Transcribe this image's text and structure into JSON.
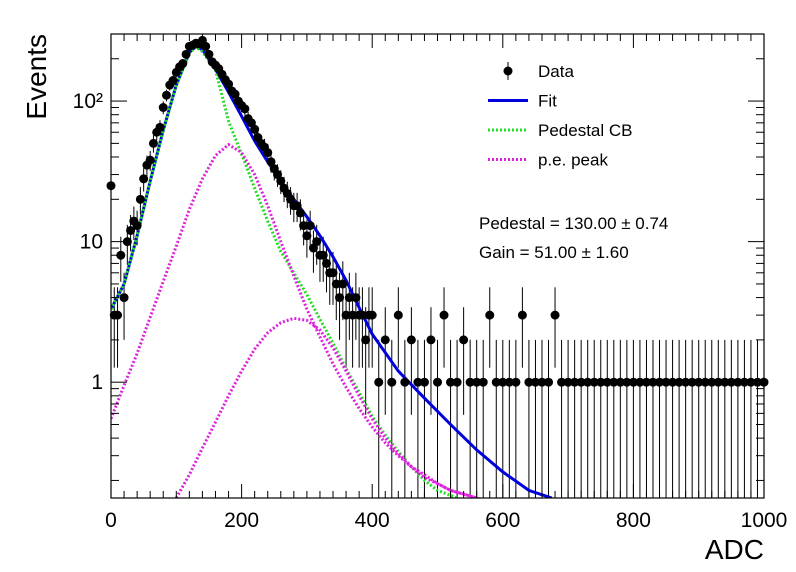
{
  "chart_data": {
    "type": "scatter",
    "title": "",
    "xlabel": "ADC",
    "ylabel": "Events",
    "xlim": [
      0,
      1000
    ],
    "ylim": [
      0.15,
      300
    ],
    "yscale": "log",
    "grid": false,
    "legend_position": "top-right",
    "x_ticks": [
      "0",
      "200",
      "400",
      "600",
      "800",
      "1000"
    ],
    "y_ticks": [
      "1",
      "10",
      "10²"
    ],
    "legend": [
      {
        "label": "Data",
        "style": "marker",
        "color": "#000000"
      },
      {
        "label": "Fit",
        "style": "solid",
        "color": "#0000dd"
      },
      {
        "label": "Pedestal CB",
        "style": "dotted",
        "color": "#22dd22"
      },
      {
        "label": "p.e. peak",
        "style": "dotted",
        "color": "#dd22dd"
      }
    ],
    "annotations": {
      "pedestal": "Pedestal = 130.00 ± 0.74",
      "gain": "Gain = 51.00 ± 1.60"
    },
    "fit_parameters": {
      "pedestal": 130.0,
      "pedestal_error": 0.74,
      "gain": 51.0,
      "gain_error": 1.6
    },
    "series": [
      {
        "name": "Data",
        "x": [
          0,
          5,
          10,
          15,
          20,
          25,
          30,
          35,
          40,
          45,
          50,
          55,
          60,
          65,
          70,
          75,
          80,
          85,
          90,
          95,
          100,
          105,
          110,
          115,
          120,
          125,
          130,
          135,
          140,
          145,
          150,
          155,
          160,
          165,
          170,
          175,
          180,
          185,
          190,
          195,
          200,
          205,
          210,
          215,
          220,
          225,
          230,
          235,
          240,
          245,
          250,
          255,
          260,
          265,
          270,
          275,
          280,
          285,
          290,
          295,
          300,
          305,
          310,
          315,
          320,
          325,
          330,
          335,
          340,
          345,
          350,
          355,
          360,
          365,
          370,
          375,
          380,
          385,
          390,
          395,
          400,
          410,
          420,
          430,
          440,
          450,
          460,
          470,
          480,
          490,
          500,
          510,
          520,
          530,
          540,
          550,
          560,
          570,
          580,
          590,
          600,
          610,
          620,
          630,
          640,
          650,
          660,
          670,
          680,
          690,
          700,
          710,
          720,
          730,
          740,
          750,
          760,
          770,
          780,
          790,
          800,
          810,
          820,
          830,
          840,
          850,
          860,
          870,
          880,
          890,
          900,
          910,
          920,
          930,
          940,
          950,
          960,
          970,
          980,
          990,
          1000
        ],
        "y": [
          25,
          3,
          3,
          8,
          4,
          10,
          12,
          14,
          13,
          20,
          28,
          35,
          38,
          50,
          60,
          65,
          90,
          110,
          130,
          140,
          160,
          175,
          185,
          215,
          245,
          250,
          258,
          255,
          270,
          245,
          215,
          190,
          180,
          170,
          155,
          142,
          132,
          118,
          112,
          100,
          93,
          88,
          75,
          70,
          63,
          55,
          50,
          47,
          43,
          37,
          33,
          30,
          27,
          24,
          22,
          20,
          18,
          18,
          16,
          13,
          11,
          13,
          9,
          10,
          8,
          8,
          7,
          6,
          6,
          5,
          4,
          5,
          3,
          4,
          3,
          4,
          3,
          3,
          2,
          3,
          3,
          1,
          2,
          1,
          3,
          1,
          2,
          1,
          1,
          2,
          1,
          3,
          1,
          1,
          2,
          1,
          1,
          1,
          3,
          1,
          1,
          1,
          1,
          3,
          1,
          1,
          1,
          1,
          3,
          1,
          1,
          1,
          1,
          1,
          1,
          1,
          1,
          1,
          1,
          1,
          1,
          1,
          1,
          1,
          1,
          1,
          1,
          1,
          1,
          1,
          1,
          1,
          1,
          1,
          1,
          1,
          1,
          1,
          1,
          1,
          1
        ]
      },
      {
        "name": "Fit",
        "x": [
          0,
          20,
          40,
          60,
          80,
          100,
          120,
          130,
          140,
          160,
          180,
          200,
          220,
          240,
          260,
          280,
          300,
          320,
          340,
          360,
          380,
          400,
          440,
          480,
          520,
          560,
          600,
          640,
          675
        ],
        "y": [
          3.3,
          5,
          11,
          27,
          62,
          130,
          222,
          245,
          232,
          168,
          116,
          78,
          52,
          37,
          27,
          20,
          15,
          11,
          7.8,
          5.3,
          3.4,
          2.2,
          1.2,
          0.77,
          0.5,
          0.33,
          0.23,
          0.17,
          0.15
        ]
      },
      {
        "name": "Pedestal CB",
        "x": [
          0,
          20,
          40,
          60,
          80,
          100,
          120,
          130,
          140,
          160,
          170,
          180,
          200,
          220,
          240,
          260,
          280,
          290,
          300,
          320,
          340,
          360,
          380,
          400,
          420,
          440,
          460,
          480,
          500,
          530,
          560
        ],
        "y": [
          3.3,
          5,
          11,
          27,
          62,
          130,
          220,
          243,
          225,
          165,
          110,
          72,
          42,
          24,
          14,
          8.5,
          6,
          5,
          4.2,
          2.8,
          1.9,
          1.25,
          0.85,
          0.57,
          0.42,
          0.32,
          0.25,
          0.2,
          0.17,
          0.15,
          0.13
        ]
      },
      {
        "name": "p.e. peak",
        "x": [
          0,
          20,
          40,
          60,
          80,
          100,
          120,
          140,
          160,
          180,
          200,
          220,
          240,
          260,
          280,
          300,
          320,
          340,
          360,
          380,
          400,
          420,
          440,
          460,
          480,
          500,
          520,
          540,
          560,
          580
        ],
        "y": [
          0.55,
          0.95,
          1.6,
          2.9,
          5.2,
          9.3,
          17,
          28,
          41,
          49,
          43,
          30,
          18,
          10,
          5.7,
          3.3,
          2.1,
          1.35,
          0.92,
          0.65,
          0.48,
          0.37,
          0.3,
          0.25,
          0.22,
          0.19,
          0.17,
          0.16,
          0.15,
          0.14
        ]
      },
      {
        "name": "p.e. peak",
        "x": [
          100,
          120,
          140,
          160,
          180,
          200,
          220,
          240,
          260,
          280,
          300,
          320,
          340,
          360,
          380,
          400,
          420,
          440,
          460,
          480,
          500,
          520,
          540,
          560,
          580
        ],
        "y": [
          0.15,
          0.22,
          0.34,
          0.52,
          0.8,
          1.2,
          1.72,
          2.25,
          2.65,
          2.85,
          2.75,
          2.35,
          1.75,
          1.2,
          0.8,
          0.55,
          0.4,
          0.31,
          0.25,
          0.21,
          0.19,
          0.17,
          0.16,
          0.15,
          0.14
        ]
      }
    ]
  }
}
